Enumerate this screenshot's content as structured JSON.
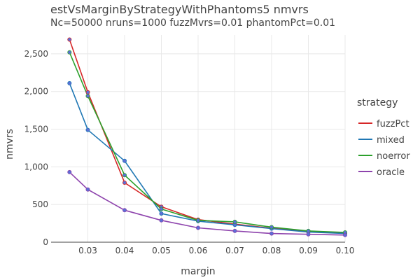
{
  "chart_data": {
    "type": "line",
    "title": "estVsMarginByStrategyWithPhantoms5 nmvrs",
    "subtitle": "Nc=50000 nruns=1000 fuzzMvrs=0.01 phantomPct=0.01",
    "xlabel": "margin",
    "ylabel": "nmvrs",
    "xlim": [
      0.02,
      0.1
    ],
    "ylim": [
      0,
      2750
    ],
    "x_ticks": [
      0.03,
      0.04,
      0.05,
      0.06,
      0.07,
      0.08,
      0.09,
      0.1
    ],
    "x_tick_labels": [
      "0.03",
      "0.04",
      "0.05",
      "0.06",
      "0.07",
      "0.08",
      "0.09",
      "0.10"
    ],
    "y_ticks": [
      0,
      500,
      1000,
      1500,
      2000,
      2500
    ],
    "y_tick_labels": [
      "0",
      "500",
      "1,000",
      "1,500",
      "2,000",
      "2,500"
    ],
    "grid": true,
    "legend_title": "strategy",
    "legend_position": "right",
    "x": [
      0.025,
      0.03,
      0.04,
      0.05,
      0.06,
      0.07,
      0.08,
      0.09,
      0.1
    ],
    "series": [
      {
        "name": "fuzzPct",
        "color": "#d62728",
        "values": [
          2690,
          1990,
          790,
          470,
          300,
          240,
          185,
          145,
          120
        ]
      },
      {
        "name": "mixed",
        "color": "#1f77b4",
        "values": [
          2110,
          1490,
          1080,
          380,
          280,
          230,
          180,
          135,
          115
        ]
      },
      {
        "name": "noerror",
        "color": "#2ca02c",
        "values": [
          2520,
          1940,
          890,
          440,
          290,
          270,
          200,
          150,
          130
        ]
      },
      {
        "name": "oracle",
        "color": "#8e44ad",
        "values": [
          930,
          700,
          425,
          290,
          190,
          150,
          115,
          105,
          95
        ]
      }
    ],
    "marker_color": "#5b6fd6"
  }
}
